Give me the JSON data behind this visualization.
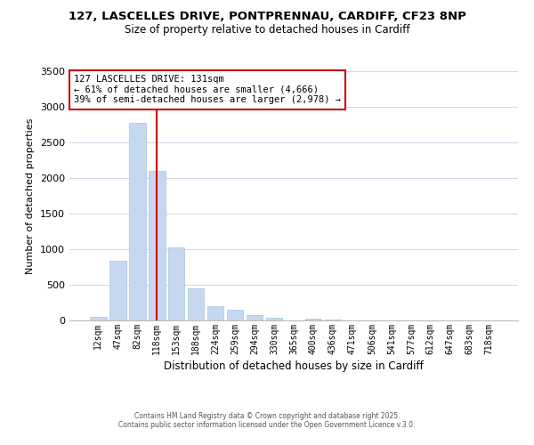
{
  "title": "127, LASCELLES DRIVE, PONTPRENNAU, CARDIFF, CF23 8NP",
  "subtitle": "Size of property relative to detached houses in Cardiff",
  "xlabel": "Distribution of detached houses by size in Cardiff",
  "ylabel": "Number of detached properties",
  "bar_labels": [
    "12sqm",
    "47sqm",
    "82sqm",
    "118sqm",
    "153sqm",
    "188sqm",
    "224sqm",
    "259sqm",
    "294sqm",
    "330sqm",
    "365sqm",
    "400sqm",
    "436sqm",
    "471sqm",
    "506sqm",
    "541sqm",
    "577sqm",
    "612sqm",
    "647sqm",
    "683sqm",
    "718sqm"
  ],
  "bar_values": [
    55,
    840,
    2770,
    2100,
    1030,
    450,
    200,
    145,
    70,
    40,
    0,
    25,
    8,
    3,
    0,
    0,
    0,
    0,
    0,
    0,
    0
  ],
  "bar_color": "#c5d8f0",
  "bar_edge_color": "#a8c4e0",
  "vline_color": "#cc0000",
  "annotation_line1": "127 LASCELLES DRIVE: 131sqm",
  "annotation_line2": "← 61% of detached houses are smaller (4,666)",
  "annotation_line3": "39% of semi-detached houses are larger (2,978) →",
  "annotation_box_color": "#ffffff",
  "annotation_border_color": "#cc0000",
  "ylim": [
    0,
    3500
  ],
  "yticks": [
    0,
    500,
    1000,
    1500,
    2000,
    2500,
    3000,
    3500
  ],
  "bg_color": "#ffffff",
  "grid_color": "#cdd8e8",
  "footer1": "Contains HM Land Registry data © Crown copyright and database right 2025.",
  "footer2": "Contains public sector information licensed under the Open Government Licence v.3.0."
}
